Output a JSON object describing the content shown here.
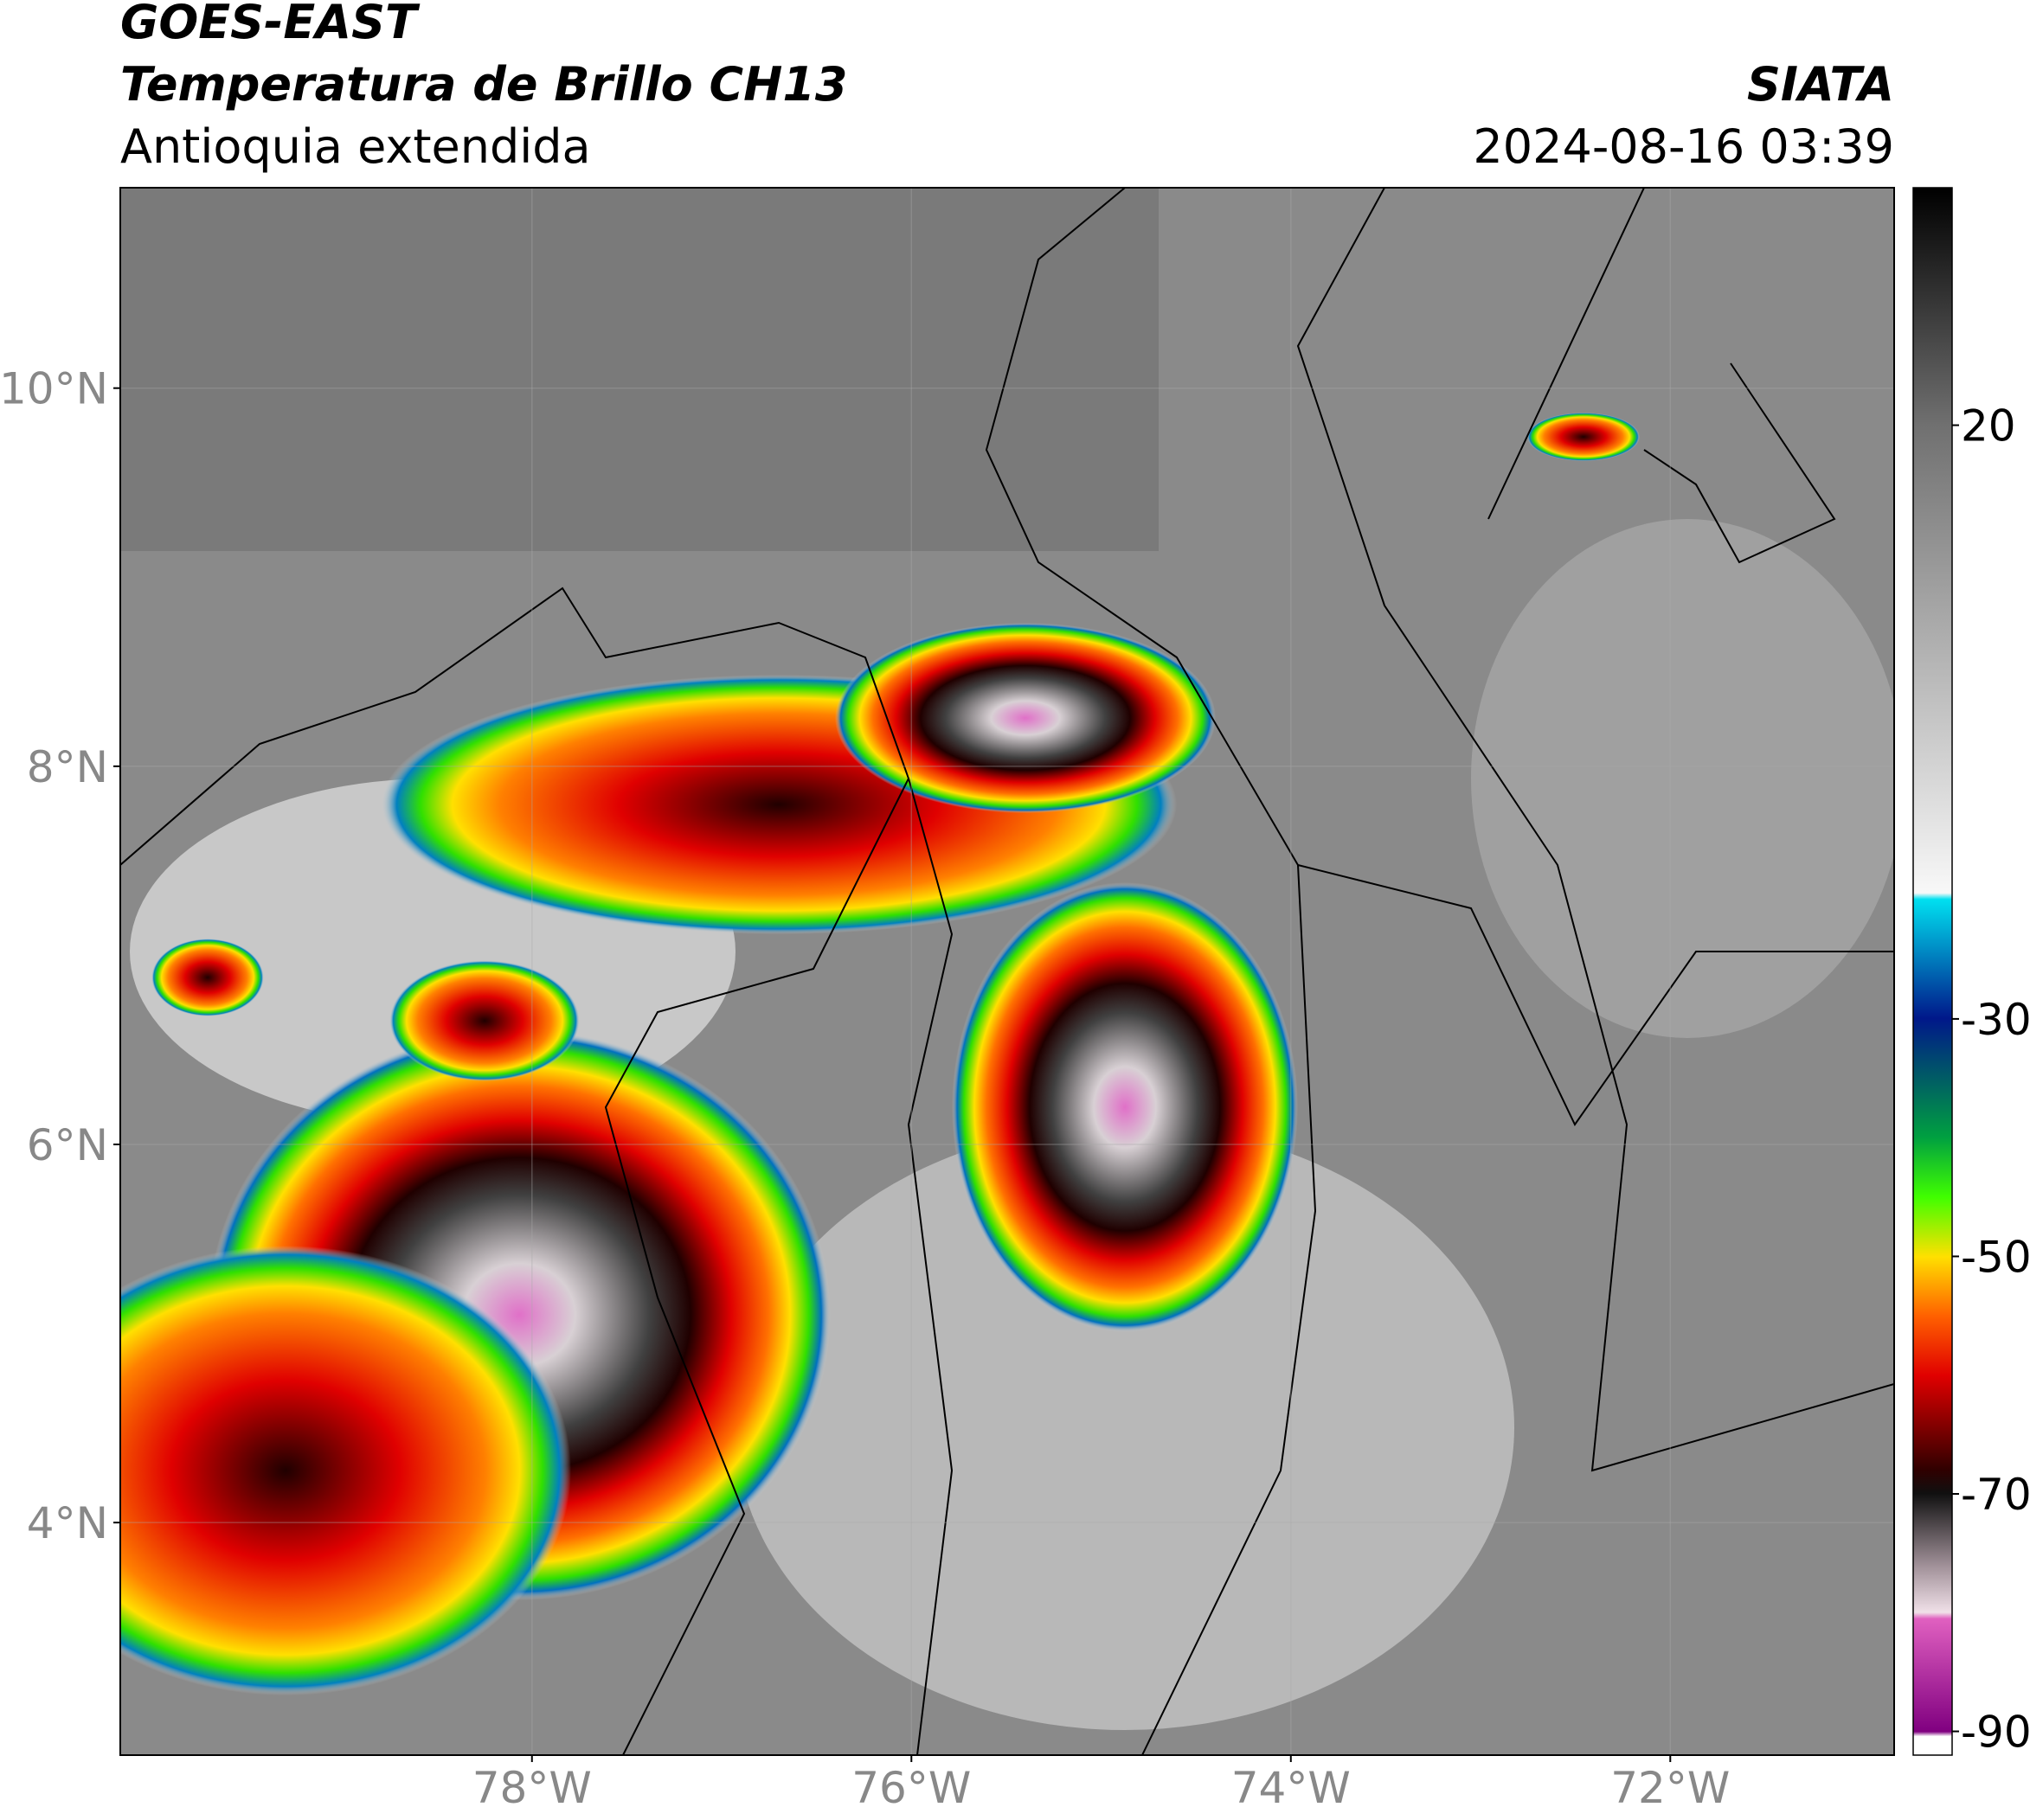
{
  "header": {
    "satellite": "GOES-EAST",
    "product": "Temperatura de Brillo CH13",
    "region": "Antioquia extendida",
    "agency": "SIATA",
    "datetime": "2024-08-16 03:39"
  },
  "map": {
    "xlim": [
      -80.17,
      -70.82
    ],
    "ylim": [
      2.77,
      11.06
    ],
    "xticks": [
      {
        "value": -78,
        "label": "78°W"
      },
      {
        "value": -76,
        "label": "76°W"
      },
      {
        "value": -74,
        "label": "74°W"
      },
      {
        "value": -72,
        "label": "72°W"
      }
    ],
    "yticks": [
      {
        "value": 4,
        "label": "4°N"
      },
      {
        "value": 6,
        "label": "6°N"
      },
      {
        "value": 8,
        "label": "8°N"
      },
      {
        "value": 10,
        "label": "10°N"
      }
    ],
    "grid": true
  },
  "colorbar": {
    "lim": [
      -92,
      40
    ],
    "ticks": [
      20,
      -30,
      -50,
      -70,
      -90
    ]
  }
}
